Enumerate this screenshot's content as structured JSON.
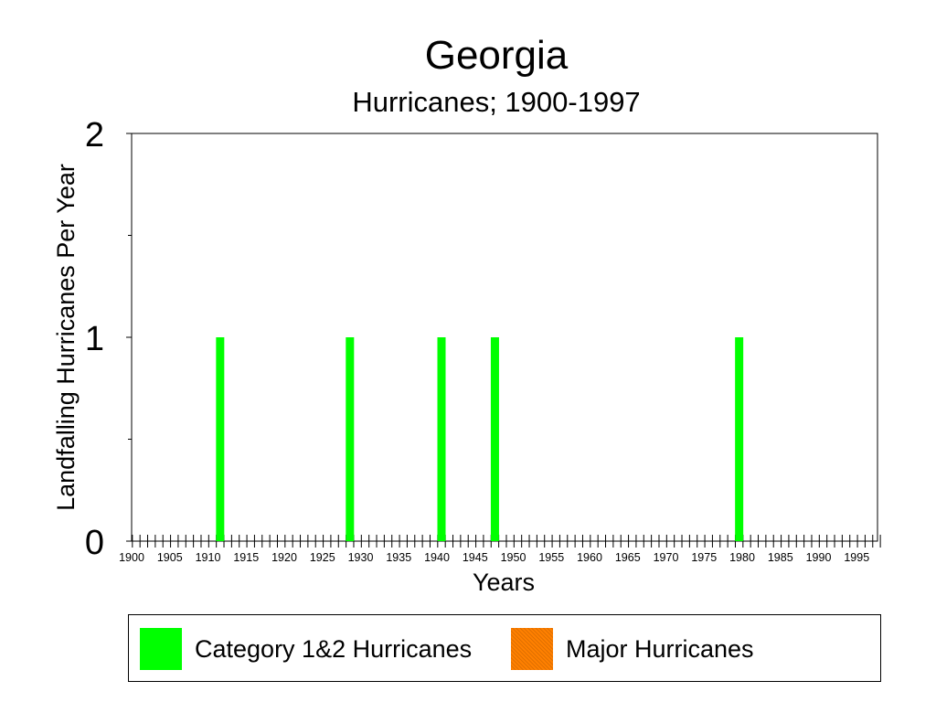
{
  "chart_data": {
    "type": "bar",
    "title": "Georgia",
    "subtitle": "Hurricanes; 1900-1997",
    "xlabel": "Years",
    "ylabel": "Landfalling Hurricanes Per Year",
    "ylim": [
      0,
      2
    ],
    "y_ticks": [
      "0",
      "1",
      "2"
    ],
    "x_tick_labels": [
      "1900",
      "1905",
      "1910",
      "1915",
      "1920",
      "1925",
      "1930",
      "1935",
      "1940",
      "1945",
      "1950",
      "1955",
      "1960",
      "1965",
      "1970",
      "1975",
      "1980",
      "1985",
      "1990",
      "1995"
    ],
    "x_range": [
      1900,
      1997
    ],
    "grid": false,
    "legend_position": "bottom",
    "series": [
      {
        "name": "Category 1&2 Hurricanes",
        "color": "#00ff00",
        "points": [
          {
            "x": 1911,
            "y": 1
          },
          {
            "x": 1928,
            "y": 1
          },
          {
            "x": 1940,
            "y": 1
          },
          {
            "x": 1947,
            "y": 1
          },
          {
            "x": 1979,
            "y": 1
          }
        ]
      },
      {
        "name": "Major Hurricanes",
        "color": "#ff8000",
        "points": []
      }
    ]
  }
}
